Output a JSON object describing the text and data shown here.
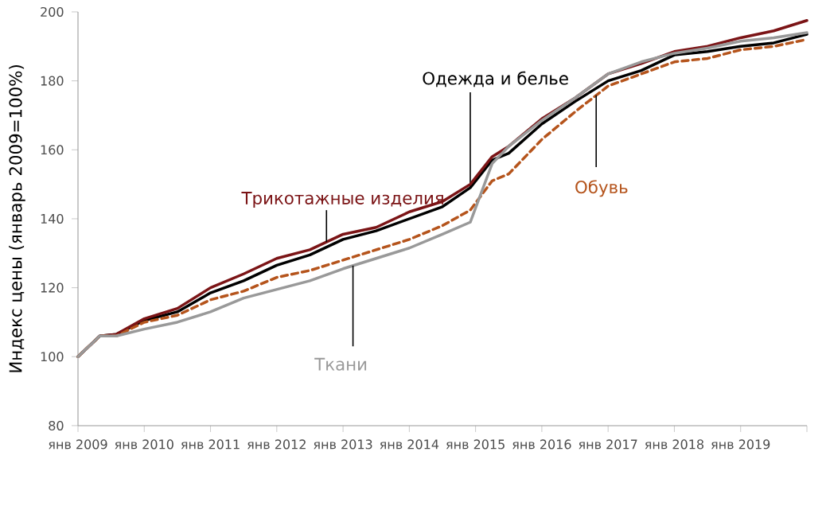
{
  "chart_data": {
    "type": "line",
    "ylabel": "Индекс цены (январь 2009=100%)",
    "x": [
      "2009-01",
      "2009-05",
      "2009-08",
      "2010-01",
      "2010-07",
      "2011-01",
      "2011-07",
      "2012-01",
      "2012-07",
      "2013-01",
      "2013-07",
      "2014-01",
      "2014-07",
      "2014-12",
      "2015-04",
      "2015-07",
      "2016-01",
      "2016-07",
      "2017-01",
      "2017-07",
      "2018-01",
      "2018-07",
      "2019-01",
      "2019-07",
      "2020-01"
    ],
    "series": [
      {
        "name": "Одежда и белье",
        "color": "#000000",
        "line_style": "solid",
        "values": [
          100,
          106,
          106.5,
          110.5,
          113,
          118.5,
          122,
          126.5,
          129.5,
          134,
          136.5,
          140,
          143.5,
          149,
          157,
          159,
          167.5,
          174,
          180,
          183,
          187.5,
          188.5,
          190,
          191,
          193.5
        ]
      },
      {
        "name": "Трикотажные изделия",
        "color": "#7b1416",
        "line_style": "solid",
        "values": [
          100,
          106,
          106.5,
          111,
          114,
          120,
          124,
          128.5,
          131,
          135.5,
          137.5,
          142,
          145,
          150,
          158,
          161,
          169,
          175,
          182,
          185,
          188.5,
          190,
          192.5,
          194.5,
          197.5
        ]
      },
      {
        "name": "Обувь",
        "color": "#b5541c",
        "line_style": "dashed",
        "values": [
          100,
          106,
          106,
          110,
          112,
          116.5,
          119,
          123,
          125,
          128,
          131,
          134,
          138,
          142.5,
          151,
          153,
          163,
          171,
          178.5,
          182,
          185.5,
          186.5,
          189,
          190,
          192
        ]
      },
      {
        "name": "Ткани",
        "color": "#999999",
        "line_style": "solid",
        "values": [
          100,
          106,
          106,
          108,
          110,
          113,
          117,
          119.5,
          122,
          125.5,
          128.5,
          131.5,
          135.5,
          139,
          156,
          161,
          168.5,
          175,
          182,
          185.5,
          188,
          189.5,
          191.5,
          192.5,
          194
        ]
      }
    ],
    "xlim": [
      "2009-01",
      "2020-01"
    ],
    "xticks": [
      {
        "value": "2009-01",
        "label": "янв 2009"
      },
      {
        "value": "2010-01",
        "label": "янв 2010"
      },
      {
        "value": "2011-01",
        "label": "янв 2011"
      },
      {
        "value": "2012-01",
        "label": "янв 2012"
      },
      {
        "value": "2013-01",
        "label": "янв 2013"
      },
      {
        "value": "2014-01",
        "label": "янв 2014"
      },
      {
        "value": "2015-01",
        "label": "янв 2015"
      },
      {
        "value": "2016-01",
        "label": "янв 2016"
      },
      {
        "value": "2017-01",
        "label": "янв 2017"
      },
      {
        "value": "2018-01",
        "label": "янв 2018"
      },
      {
        "value": "2019-01",
        "label": "янв 2019"
      },
      {
        "value": "2020-01",
        "label": null
      }
    ],
    "ylim": [
      80,
      200
    ],
    "yticks": [
      80,
      100,
      120,
      140,
      160,
      180,
      200
    ],
    "grid": false,
    "legend": false,
    "marker": "none"
  }
}
